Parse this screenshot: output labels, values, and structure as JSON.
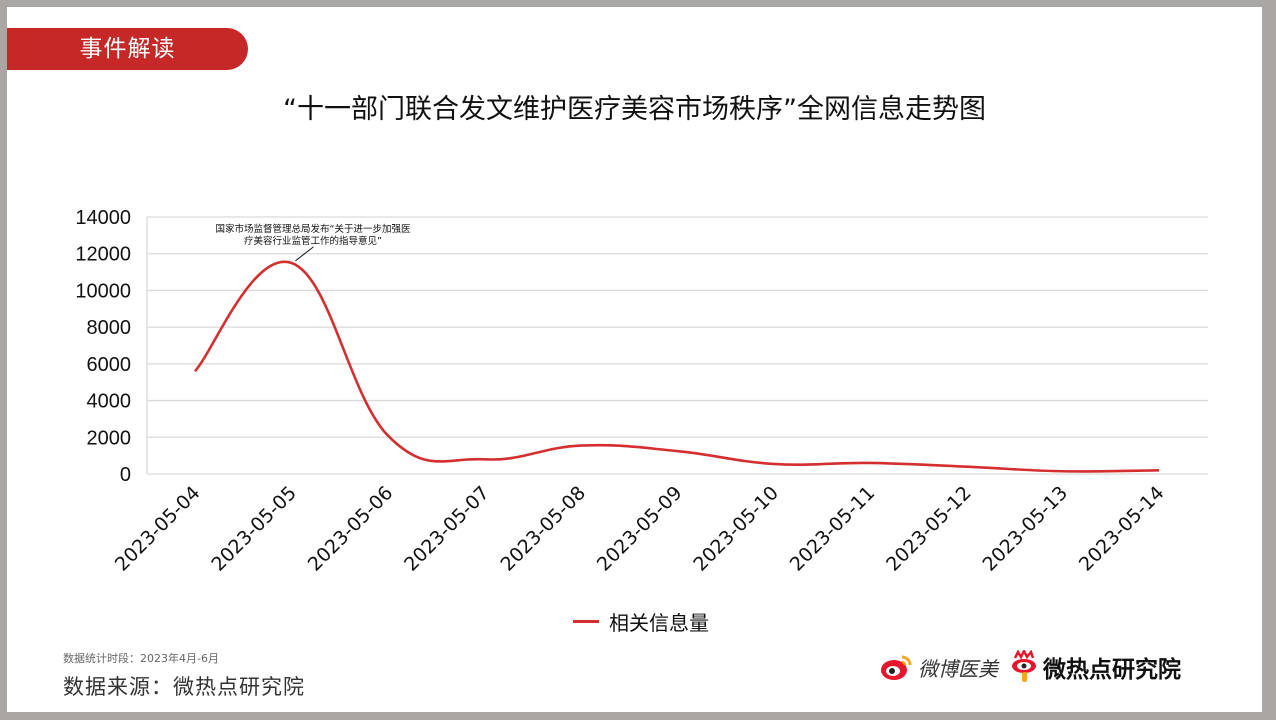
{
  "header": {
    "tag_label": "事件解读",
    "title": "“十一部门联合发文维护医疗美容市场秩序”全网信息走势图"
  },
  "chart_data": {
    "type": "line",
    "title": "“十一部门联合发文维护医疗美容市场秩序”全网信息走势图",
    "xlabel": "",
    "ylabel": "",
    "ylim": [
      0,
      14000
    ],
    "yticks": [
      0,
      2000,
      4000,
      6000,
      8000,
      10000,
      12000,
      14000
    ],
    "grid": true,
    "legend_position": "bottom",
    "categories": [
      "2023-05-04",
      "2023-05-05",
      "2023-05-06",
      "2023-05-07",
      "2023-05-08",
      "2023-05-09",
      "2023-05-10",
      "2023-05-11",
      "2023-05-12",
      "2023-05-13",
      "2023-05-14"
    ],
    "series": [
      {
        "name": "相关信息量",
        "color": "#d32f2f",
        "smooth": true,
        "values": [
          5600,
          11500,
          2100,
          800,
          1550,
          1250,
          550,
          600,
          400,
          150,
          200
        ]
      }
    ],
    "annotations": [
      {
        "x": "2023-05-05",
        "text_line1": "国家市场监督管理总局发布“关于进一步加强医",
        "text_line2": "疗美容行业监管工作的指导意见”"
      }
    ]
  },
  "legend": {
    "label": "相关信息量",
    "color": "#d32f2f"
  },
  "footer": {
    "period": "数据统计时段：2023年4月-6月",
    "source": "数据来源：微热点研究院",
    "logo_weibo_yimei": "微博医美",
    "logo_weiredian": "微热点研究院"
  },
  "colors": {
    "accent": "#c62828",
    "line": "#d32f2f",
    "grid": "#d9d9d9",
    "frame": "#aaa6a4"
  }
}
